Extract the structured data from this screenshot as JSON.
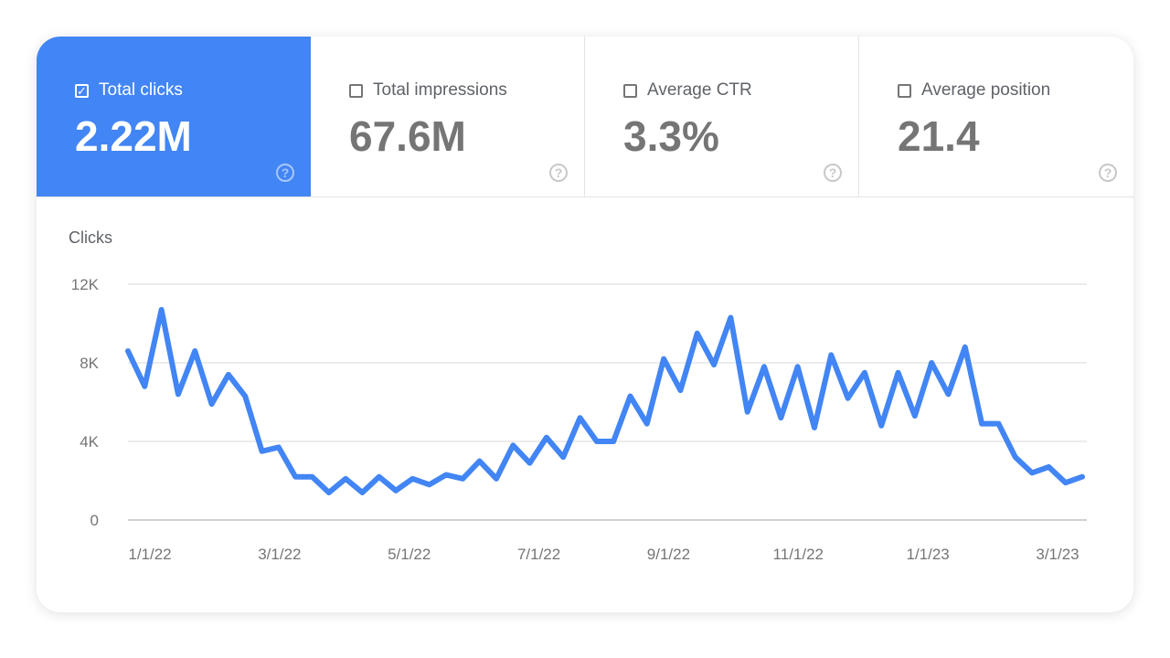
{
  "metrics": [
    {
      "label": "Total clicks",
      "value": "2.22M",
      "checked": true
    },
    {
      "label": "Total impressions",
      "value": "67.6M",
      "checked": false
    },
    {
      "label": "Average CTR",
      "value": "3.3%",
      "checked": false
    },
    {
      "label": "Average position",
      "value": "21.4",
      "checked": false
    }
  ],
  "colors": {
    "accent": "#4285f4",
    "line": "#4285f4"
  },
  "chart_data": {
    "type": "line",
    "ylabel": "Clicks",
    "ylim": [
      0,
      12000
    ],
    "yticks": [
      {
        "v": 0,
        "label": "0"
      },
      {
        "v": 4000,
        "label": "4K"
      },
      {
        "v": 8000,
        "label": "8K"
      },
      {
        "v": 12000,
        "label": "12K"
      }
    ],
    "xticks": [
      "1/1/22",
      "3/1/22",
      "5/1/22",
      "7/1/22",
      "9/1/22",
      "11/1/22",
      "1/1/23",
      "3/1/23"
    ],
    "grid": true,
    "series": [
      {
        "values": [
          8600,
          6800,
          10700,
          6400,
          8600,
          5900,
          7400,
          6300,
          3500,
          3700,
          2200,
          2200,
          1400,
          2100,
          1400,
          2200,
          1500,
          2100,
          1800,
          2300,
          2100,
          3000,
          2100,
          3800,
          2900,
          4200,
          3200,
          5200,
          4000,
          4000,
          6300,
          4900,
          8200,
          6600,
          9500,
          7900,
          10300,
          5500,
          7800,
          5200,
          7800,
          4700,
          8400,
          6200,
          7500,
          4800,
          7500,
          5300,
          8000,
          6400,
          8800,
          4900,
          4900,
          3200,
          2400,
          2700,
          1900,
          2200
        ]
      }
    ]
  }
}
